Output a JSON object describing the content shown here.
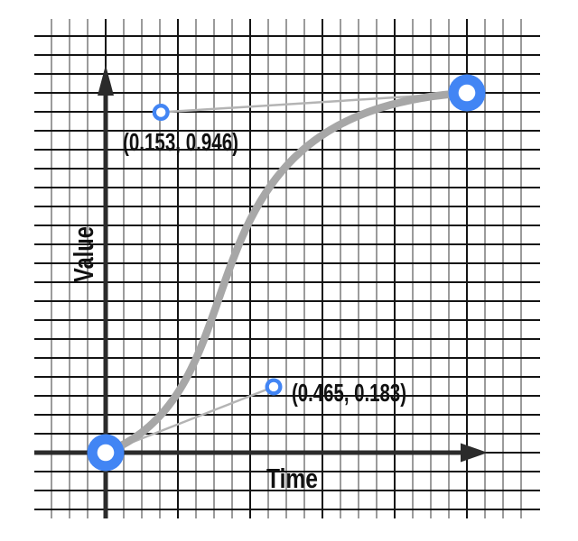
{
  "chart_data": {
    "type": "bezier",
    "title": "",
    "xlabel": "Time",
    "ylabel": "Value",
    "axis_range": {
      "x": [
        0,
        1
      ],
      "y": [
        0,
        1
      ]
    },
    "curve": {
      "start": {
        "x": 0,
        "y": 0
      },
      "end": {
        "x": 1,
        "y": 1
      },
      "control1": {
        "x": 0.465,
        "y": 0.183
      },
      "control2": {
        "x": 0.153,
        "y": 0.946
      }
    },
    "point_labels": {
      "control1": "(0.465, 0.183)",
      "control2": "(0.153, 0.946)"
    },
    "colors": {
      "point_blue": "#4285f4",
      "point_center": "#ffffff",
      "curve_gray": "#a7a7a7",
      "handle_line": "#b4b4b4",
      "grid_minor": "#9b9b9b",
      "grid_major": "#141414",
      "axis": "#2b2b2b",
      "label_text": "#111111"
    }
  }
}
